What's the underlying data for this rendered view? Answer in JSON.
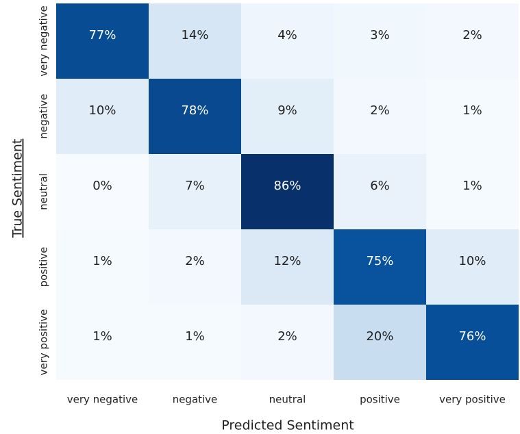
{
  "chart_data": {
    "type": "heatmap",
    "xlabel": "Predicted Sentiment",
    "ylabel": "True Sentiment",
    "x": [
      "very negative",
      "negative",
      "neutral",
      "positive",
      "very positive"
    ],
    "y": [
      "very negative",
      "negative",
      "neutral",
      "positive",
      "very positive"
    ],
    "values": [
      [
        77,
        14,
        4,
        3,
        2
      ],
      [
        10,
        78,
        9,
        2,
        1
      ],
      [
        0,
        7,
        86,
        6,
        1
      ],
      [
        1,
        2,
        12,
        75,
        10
      ],
      [
        1,
        1,
        2,
        20,
        76
      ]
    ],
    "value_labels": [
      [
        "77%",
        "14%",
        "4%",
        "3%",
        "2%"
      ],
      [
        "10%",
        "78%",
        "9%",
        "2%",
        "1%"
      ],
      [
        "0%",
        "7%",
        "86%",
        "6%",
        "1%"
      ],
      [
        "1%",
        "2%",
        "12%",
        "75%",
        "10%"
      ],
      [
        "1%",
        "1%",
        "2%",
        "20%",
        "76%"
      ]
    ],
    "colormap": "Blues"
  }
}
